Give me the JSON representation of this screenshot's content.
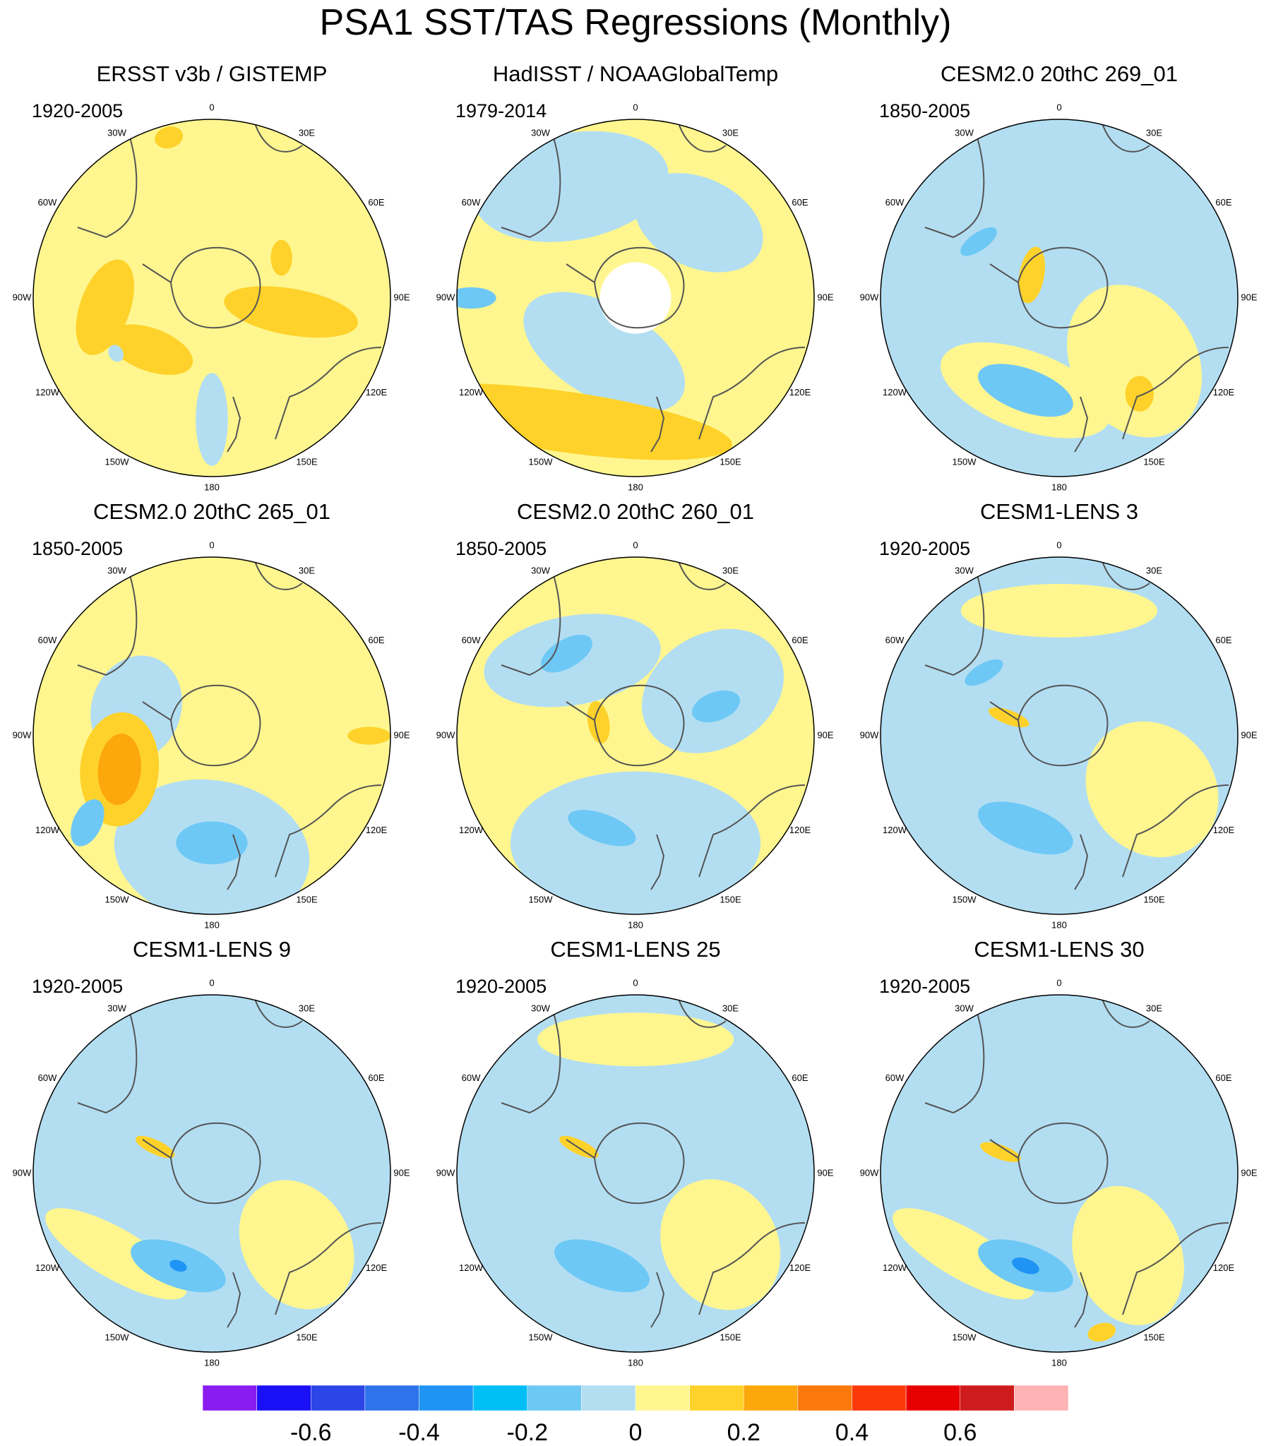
{
  "title": "PSA1 SST/TAS Regressions (Monthly)",
  "longitude_labels": [
    "0",
    "30E",
    "60E",
    "90E",
    "120E",
    "150E",
    "180",
    "150W",
    "120W",
    "90W",
    "60W",
    "30W"
  ],
  "colors": {
    "levels": [
      "#8a1cf0",
      "#1a10f5",
      "#2b45e6",
      "#2f73eb",
      "#1f94f5",
      "#00bff5",
      "#6ec8f5",
      "#b3def2",
      "#fff68f",
      "#fed22a",
      "#fca70c",
      "#fb780a",
      "#fb3a0a",
      "#e80000",
      "#cf1b1b",
      "#fdb3b3"
    ],
    "continent_outline": "#555555",
    "map_border": "#000000"
  },
  "chart_data": {
    "type": "polar-stereographic contour map panel",
    "region": "Southern Hemisphere, 0-90S",
    "panels": [
      {
        "title": "ERSST v3b / GISTEMP",
        "period": "1920-2005",
        "base_color": "#fff68f",
        "features": [
          {
            "lon": 100,
            "r": 0.45,
            "w": 0.13,
            "h": 0.38,
            "rot": 0,
            "color": "#fed22a"
          },
          {
            "lon": 265,
            "r": 0.6,
            "w": 0.28,
            "h": 0.14,
            "rot": 25,
            "color": "#fed22a"
          },
          {
            "lon": 230,
            "r": 0.45,
            "w": 0.25,
            "h": 0.12,
            "rot": -30,
            "color": "#fed22a"
          },
          {
            "lon": 60,
            "r": 0.45,
            "w": 0.1,
            "h": 0.06,
            "rot": 30,
            "color": "#fed22a"
          },
          {
            "lon": 345,
            "r": 0.93,
            "w": 0.08,
            "h": 0.06,
            "rot": 0,
            "color": "#fed22a"
          },
          {
            "lon": 180,
            "r": 0.68,
            "w": 0.09,
            "h": 0.26,
            "rot": 0,
            "color": "#b3def2"
          },
          {
            "lon": 240,
            "r": 0.62,
            "w": 0.05,
            "h": 0.04,
            "rot": 0,
            "color": "#b3def2"
          }
        ]
      },
      {
        "title": "HadISST / NOAAGlobalTemp",
        "period": "1979-2014",
        "base_color": "#fff68f",
        "features": [
          {
            "lon": 330,
            "r": 0.72,
            "w": 0.55,
            "h": 0.3,
            "rot": 20,
            "color": "#b3def2"
          },
          {
            "lon": 40,
            "r": 0.55,
            "w": 0.38,
            "h": 0.25,
            "rot": -15,
            "color": "#b3def2"
          },
          {
            "lon": 210,
            "r": 0.35,
            "w": 0.5,
            "h": 0.26,
            "rot": 0,
            "color": "#b3def2"
          },
          {
            "lon": 270,
            "r": 0.92,
            "w": 0.06,
            "h": 0.14,
            "rot": 0,
            "color": "#6ec8f5"
          },
          {
            "lon": 210,
            "r": 0.8,
            "w": 0.95,
            "h": 0.17,
            "rot": -22,
            "color": "#fed22a"
          },
          {
            "lon": 0,
            "r": 0.0,
            "w": 0.2,
            "h": 0.2,
            "rot": 0,
            "color": "#ffffff"
          }
        ]
      },
      {
        "title": "CESM2.0 20thC 269_01",
        "period": "1850-2005",
        "base_color": "#b3def2",
        "features": [
          {
            "lon": 200,
            "r": 0.55,
            "w": 0.5,
            "h": 0.22,
            "rot": 0,
            "color": "#fff68f"
          },
          {
            "lon": 130,
            "r": 0.55,
            "w": 0.35,
            "h": 0.45,
            "rot": 20,
            "color": "#fff68f"
          },
          {
            "lon": 200,
            "r": 0.55,
            "w": 0.28,
            "h": 0.12,
            "rot": 0,
            "color": "#6ec8f5"
          },
          {
            "lon": 305,
            "r": 0.55,
            "w": 0.12,
            "h": 0.05,
            "rot": 20,
            "color": "#6ec8f5"
          },
          {
            "lon": 140,
            "r": 0.7,
            "w": 0.08,
            "h": 0.1,
            "rot": 40,
            "color": "#fed22a"
          },
          {
            "lon": 310,
            "r": 0.2,
            "w": 0.16,
            "h": 0.07,
            "rot": -30,
            "color": "#fed22a"
          }
        ]
      },
      {
        "title": "CESM2.0 20thC 265_01",
        "period": "1850-2005",
        "base_color": "#fff68f",
        "features": [
          {
            "lon": 180,
            "r": 0.65,
            "w": 0.55,
            "h": 0.4,
            "rot": 10,
            "color": "#b3def2"
          },
          {
            "lon": 290,
            "r": 0.45,
            "w": 0.3,
            "h": 0.25,
            "rot": 0,
            "color": "#b3def2"
          },
          {
            "lon": 250,
            "r": 0.55,
            "w": 0.32,
            "h": 0.22,
            "rot": 25,
            "color": "#fed22a"
          },
          {
            "lon": 250,
            "r": 0.55,
            "w": 0.2,
            "h": 0.12,
            "rot": 25,
            "color": "#fca70c"
          },
          {
            "lon": 180,
            "r": 0.6,
            "w": 0.2,
            "h": 0.12,
            "rot": 0,
            "color": "#6ec8f5"
          },
          {
            "lon": 235,
            "r": 0.85,
            "w": 0.08,
            "h": 0.14,
            "rot": -30,
            "color": "#6ec8f5"
          },
          {
            "lon": 90,
            "r": 0.88,
            "w": 0.05,
            "h": 0.12,
            "rot": 0,
            "color": "#fed22a"
          }
        ]
      },
      {
        "title": "CESM2.0 20thC 260_01",
        "period": "1850-2005",
        "base_color": "#fff68f",
        "features": [
          {
            "lon": 180,
            "r": 0.6,
            "w": 0.7,
            "h": 0.4,
            "rot": 0,
            "color": "#b3def2"
          },
          {
            "lon": 320,
            "r": 0.55,
            "w": 0.5,
            "h": 0.25,
            "rot": 30,
            "color": "#b3def2"
          },
          {
            "lon": 60,
            "r": 0.5,
            "w": 0.32,
            "h": 0.42,
            "rot": 0,
            "color": "#b3def2"
          },
          {
            "lon": 70,
            "r": 0.48,
            "w": 0.08,
            "h": 0.14,
            "rot": 0,
            "color": "#6ec8f5"
          },
          {
            "lon": 320,
            "r": 0.6,
            "w": 0.16,
            "h": 0.08,
            "rot": 10,
            "color": "#6ec8f5"
          },
          {
            "lon": 200,
            "r": 0.55,
            "w": 0.2,
            "h": 0.08,
            "rot": 0,
            "color": "#6ec8f5"
          },
          {
            "lon": 290,
            "r": 0.22,
            "w": 0.12,
            "h": 0.06,
            "rot": -30,
            "color": "#fed22a"
          }
        ]
      },
      {
        "title": "CESM1-LENS 3",
        "period": "1920-2005",
        "base_color": "#b3def2",
        "features": [
          {
            "lon": 0,
            "r": 0.7,
            "w": 0.55,
            "h": 0.15,
            "rot": 0,
            "color": "#fff68f"
          },
          {
            "lon": 120,
            "r": 0.6,
            "w": 0.35,
            "h": 0.4,
            "rot": 20,
            "color": "#fff68f"
          },
          {
            "lon": 200,
            "r": 0.55,
            "w": 0.28,
            "h": 0.12,
            "rot": 0,
            "color": "#6ec8f5"
          },
          {
            "lon": 310,
            "r": 0.55,
            "w": 0.12,
            "h": 0.05,
            "rot": 20,
            "color": "#6ec8f5"
          },
          {
            "lon": 290,
            "r": 0.3,
            "w": 0.04,
            "h": 0.12,
            "rot": 0,
            "color": "#fed22a"
          }
        ]
      },
      {
        "title": "CESM1-LENS 9",
        "period": "1920-2005",
        "base_color": "#b3def2",
        "features": [
          {
            "lon": 230,
            "r": 0.7,
            "w": 0.45,
            "h": 0.14,
            "rot": -20,
            "color": "#fff68f"
          },
          {
            "lon": 130,
            "r": 0.62,
            "w": 0.3,
            "h": 0.38,
            "rot": 20,
            "color": "#fff68f"
          },
          {
            "lon": 200,
            "r": 0.55,
            "w": 0.28,
            "h": 0.12,
            "rot": 0,
            "color": "#6ec8f5"
          },
          {
            "lon": 200,
            "r": 0.55,
            "w": 0.05,
            "h": 0.03,
            "rot": 0,
            "color": "#1f94f5"
          },
          {
            "lon": 295,
            "r": 0.35,
            "w": 0.04,
            "h": 0.12,
            "rot": 0,
            "color": "#fed22a"
          }
        ]
      },
      {
        "title": "CESM1-LENS 25",
        "period": "1920-2005",
        "base_color": "#b3def2",
        "features": [
          {
            "lon": 0,
            "r": 0.75,
            "w": 0.55,
            "h": 0.15,
            "rot": 0,
            "color": "#fff68f"
          },
          {
            "lon": 130,
            "r": 0.62,
            "w": 0.32,
            "h": 0.38,
            "rot": 20,
            "color": "#fff68f"
          },
          {
            "lon": 200,
            "r": 0.55,
            "w": 0.28,
            "h": 0.12,
            "rot": 0,
            "color": "#6ec8f5"
          },
          {
            "lon": 295,
            "r": 0.35,
            "w": 0.04,
            "h": 0.12,
            "rot": 0,
            "color": "#fed22a"
          }
        ]
      },
      {
        "title": "CESM1-LENS 30",
        "period": "1920-2005",
        "base_color": "#b3def2",
        "features": [
          {
            "lon": 140,
            "r": 0.6,
            "w": 0.3,
            "h": 0.4,
            "rot": 20,
            "color": "#fff68f"
          },
          {
            "lon": 230,
            "r": 0.7,
            "w": 0.45,
            "h": 0.14,
            "rot": -20,
            "color": "#fff68f"
          },
          {
            "lon": 200,
            "r": 0.55,
            "w": 0.28,
            "h": 0.12,
            "rot": 0,
            "color": "#6ec8f5"
          },
          {
            "lon": 200,
            "r": 0.55,
            "w": 0.08,
            "h": 0.04,
            "rot": 0,
            "color": "#1f94f5"
          },
          {
            "lon": 290,
            "r": 0.35,
            "w": 0.04,
            "h": 0.12,
            "rot": 0,
            "color": "#fed22a"
          },
          {
            "lon": 165,
            "r": 0.92,
            "w": 0.08,
            "h": 0.05,
            "rot": 0,
            "color": "#fed22a"
          }
        ]
      }
    ],
    "colorbar": {
      "boundaries": [
        -0.7,
        -0.6,
        -0.5,
        -0.4,
        -0.3,
        -0.2,
        -0.1,
        0,
        0.1,
        0.2,
        0.3,
        0.4,
        0.5,
        0.6,
        0.7
      ],
      "tick_labels": [
        "-0.6",
        "-0.4",
        "-0.2",
        "0",
        "0.2",
        "0.4",
        "0.6"
      ]
    }
  }
}
